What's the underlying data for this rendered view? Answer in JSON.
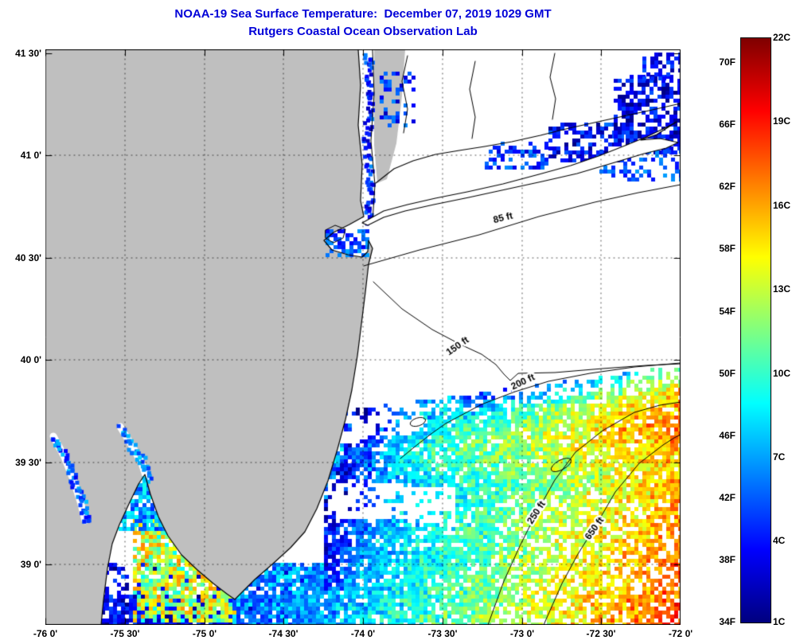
{
  "header": {
    "title_line1": "NOAA-19 Sea Surface Temperature:  December 07, 2019 1029 GMT",
    "title_line2": "Rutgers Coastal Ocean Observation Lab"
  },
  "colors": {
    "title_blue": "#0000d8",
    "land_gray": "#bfbfbf",
    "no_data_white": "#ffffff",
    "coastline_black": "#000000"
  },
  "axes": {
    "x_tick_labels": [
      "-76 0'",
      "-75 30'",
      "-75 0'",
      "-74 30'",
      "-74 0'",
      "-73 30'",
      "-73 0'",
      "-72 30'",
      "-72 0'"
    ],
    "y_tick_labels": [
      "41 30'",
      "41 0'",
      "40 30'",
      "40 0'",
      "39 30'",
      "39 0'"
    ]
  },
  "colorbar": {
    "f_labels": [
      "70F",
      "66F",
      "62F",
      "58F",
      "54F",
      "50F",
      "46F",
      "42F",
      "38F",
      "34F"
    ],
    "c_labels": [
      "22C",
      "19C",
      "16C",
      "13C",
      "10C",
      "7C",
      "4C",
      "1C"
    ]
  },
  "map": {
    "depth_contour_labels": [
      "85 ft",
      "150 ft",
      "200 ft",
      "250 ft",
      "650 ft"
    ]
  },
  "chart_data": {
    "type": "heatmap",
    "title": "NOAA-19 Sea Surface Temperature: December 07, 2019 1029 GMT",
    "subtitle": "Rutgers Coastal Ocean Observation Lab",
    "x_axis": {
      "ticks": [
        "-76 0'",
        "-75 30'",
        "-75 0'",
        "-74 30'",
        "-74 0'",
        "-73 30'",
        "-73 0'",
        "-72 30'",
        "-72 0'"
      ]
    },
    "y_axis": {
      "ticks": [
        "41 30'",
        "41 0'",
        "40 30'",
        "40 0'",
        "39 30'",
        "39 0'"
      ]
    },
    "colorbar": {
      "fahrenheit_ticks": [
        70,
        66,
        62,
        58,
        54,
        50,
        46,
        42,
        38,
        34
      ],
      "celsius_ticks": [
        22,
        19,
        16,
        13,
        10,
        7,
        4,
        1
      ],
      "colormap_top_to_bottom": [
        "#7f0000",
        "#ff0000",
        "#ff8000",
        "#ffff00",
        "#80ff80",
        "#00ffff",
        "#0080ff",
        "#0000ff",
        "#00007f"
      ]
    },
    "depth_contours_ft": [
      85,
      150,
      200,
      250,
      650
    ],
    "sst_summary": {
      "nearshore_new_jersey_f": [
        36,
        44
      ],
      "mid_shelf_f": [
        44,
        52
      ],
      "outer_shelf_southeast_f": [
        52,
        64
      ],
      "long_island_sound_patches_f": [
        34,
        42
      ],
      "delaware_bay_mouth_f": [
        48,
        62
      ],
      "land_mask_color": "gray",
      "cloud_no_data_color": "white"
    }
  }
}
